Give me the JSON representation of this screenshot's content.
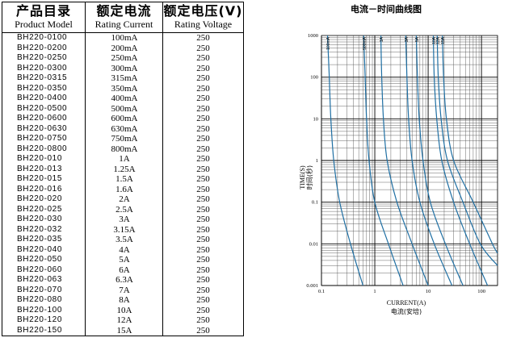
{
  "table": {
    "headers": {
      "model_zh": "产品目录",
      "model_en": "Product Model",
      "current_zh": "额定电流",
      "current_en": "Rating Current",
      "voltage_zh": "额定电压(V)",
      "voltage_en": "Rating Voltage"
    },
    "rows": [
      {
        "model": "BH220-0100",
        "current": "100mA",
        "voltage": "250"
      },
      {
        "model": "BH220-0200",
        "current": "200mA",
        "voltage": "250"
      },
      {
        "model": "BH220-0250",
        "current": "250mA",
        "voltage": "250"
      },
      {
        "model": "BH220-0300",
        "current": "300mA",
        "voltage": "250"
      },
      {
        "model": "BH220-0315",
        "current": "315mA",
        "voltage": "250"
      },
      {
        "model": "BH220-0350",
        "current": "350mA",
        "voltage": "250"
      },
      {
        "model": "BH220-0400",
        "current": "400mA",
        "voltage": "250"
      },
      {
        "model": "BH220-0500",
        "current": "500mA",
        "voltage": "250"
      },
      {
        "model": "BH220-0600",
        "current": "600mA",
        "voltage": "250"
      },
      {
        "model": "BH220-0630",
        "current": "630mA",
        "voltage": "250"
      },
      {
        "model": "BH220-0750",
        "current": "750mA",
        "voltage": "250"
      },
      {
        "model": "BH220-0800",
        "current": "800mA",
        "voltage": "250"
      },
      {
        "model": "BH220-010",
        "current": "1A",
        "voltage": "250"
      },
      {
        "model": "BH220-013",
        "current": "1.25A",
        "voltage": "250"
      },
      {
        "model": "BH220-015",
        "current": "1.5A",
        "voltage": "250"
      },
      {
        "model": "BH220-016",
        "current": "1.6A",
        "voltage": "250"
      },
      {
        "model": "BH220-020",
        "current": "2A",
        "voltage": "250"
      },
      {
        "model": "BH220-025",
        "current": "2.5A",
        "voltage": "250"
      },
      {
        "model": "BH220-030",
        "current": "3A",
        "voltage": "250"
      },
      {
        "model": "BH220-032",
        "current": "3.15A",
        "voltage": "250"
      },
      {
        "model": "BH220-035",
        "current": "3.5A",
        "voltage": "250"
      },
      {
        "model": "BH220-040",
        "current": "4A",
        "voltage": "250"
      },
      {
        "model": "BH220-050",
        "current": "5A",
        "voltage": "250"
      },
      {
        "model": "BH220-060",
        "current": "6A",
        "voltage": "250"
      },
      {
        "model": "BH220-063",
        "current": "6.3A",
        "voltage": "250"
      },
      {
        "model": "BH220-070",
        "current": "7A",
        "voltage": "250"
      },
      {
        "model": "BH220-080",
        "current": "8A",
        "voltage": "250"
      },
      {
        "model": "BH220-100",
        "current": "10A",
        "voltage": "250"
      },
      {
        "model": "BH220-120",
        "current": "12A",
        "voltage": "250"
      },
      {
        "model": "BH220-150",
        "current": "15A",
        "voltage": "250"
      }
    ]
  },
  "chart_data": {
    "type": "line",
    "title": "电流－时间曲线图",
    "xlabel": "CURRENT(A)",
    "xlabel_zh": "电流(安培)",
    "ylabel": "TIME(S)",
    "ylabel_zh": "时间(秒)",
    "x_scale": "log",
    "y_scale": "log",
    "xlim": [
      0.1,
      200
    ],
    "ylim": [
      0.001,
      1000
    ],
    "x_ticks": [
      "0.1",
      "1",
      "10",
      "100"
    ],
    "y_ticks": [
      "1000",
      "100",
      "10",
      "1",
      "0.1",
      "0.01",
      "0.001"
    ],
    "grid": true,
    "line_color": "#1f6fa3",
    "series": [
      {
        "name": "100mA",
        "points": [
          [
            0.13,
            1000
          ],
          [
            0.14,
            100
          ],
          [
            0.15,
            10
          ],
          [
            0.17,
            1
          ],
          [
            0.22,
            0.1
          ],
          [
            0.35,
            0.01
          ],
          [
            0.6,
            0.001
          ]
        ]
      },
      {
        "name": "500mA",
        "points": [
          [
            0.62,
            1000
          ],
          [
            0.66,
            100
          ],
          [
            0.7,
            10
          ],
          [
            0.78,
            1
          ],
          [
            1.0,
            0.1
          ],
          [
            1.8,
            0.01
          ],
          [
            3.4,
            0.001
          ]
        ]
      },
      {
        "name": "1A",
        "points": [
          [
            1.3,
            1000
          ],
          [
            1.35,
            100
          ],
          [
            1.45,
            10
          ],
          [
            1.7,
            1
          ],
          [
            2.6,
            0.1
          ],
          [
            5.0,
            0.01
          ],
          [
            10,
            0.001
          ]
        ]
      },
      {
        "name": "3A",
        "points": [
          [
            3.8,
            1000
          ],
          [
            4.0,
            100
          ],
          [
            4.3,
            10
          ],
          [
            5.0,
            1
          ],
          [
            7.0,
            0.1
          ],
          [
            13,
            0.01
          ],
          [
            28,
            0.001
          ]
        ]
      },
      {
        "name": "5A",
        "points": [
          [
            6.0,
            1000
          ],
          [
            6.3,
            100
          ],
          [
            6.8,
            10
          ],
          [
            8.0,
            1
          ],
          [
            11,
            0.1
          ],
          [
            21,
            0.01
          ],
          [
            45,
            0.001
          ]
        ]
      },
      {
        "name": "10A",
        "points": [
          [
            12.5,
            1000
          ],
          [
            13,
            100
          ],
          [
            14.5,
            10
          ],
          [
            18,
            1
          ],
          [
            30,
            0.1
          ],
          [
            60,
            0.01
          ],
          [
            130,
            0.001
          ]
        ]
      },
      {
        "name": "12A",
        "points": [
          [
            14.8,
            1000
          ],
          [
            15.5,
            100
          ],
          [
            17.5,
            10
          ],
          [
            23,
            1
          ],
          [
            45,
            0.1
          ],
          [
            95,
            0.01
          ],
          [
            200,
            0.003
          ]
        ]
      },
      {
        "name": "15A",
        "points": [
          [
            18.5,
            1000
          ],
          [
            19.5,
            100
          ],
          [
            22,
            10
          ],
          [
            30,
            1
          ],
          [
            70,
            0.1
          ],
          [
            160,
            0.01
          ],
          [
            200,
            0.006
          ]
        ]
      }
    ]
  }
}
